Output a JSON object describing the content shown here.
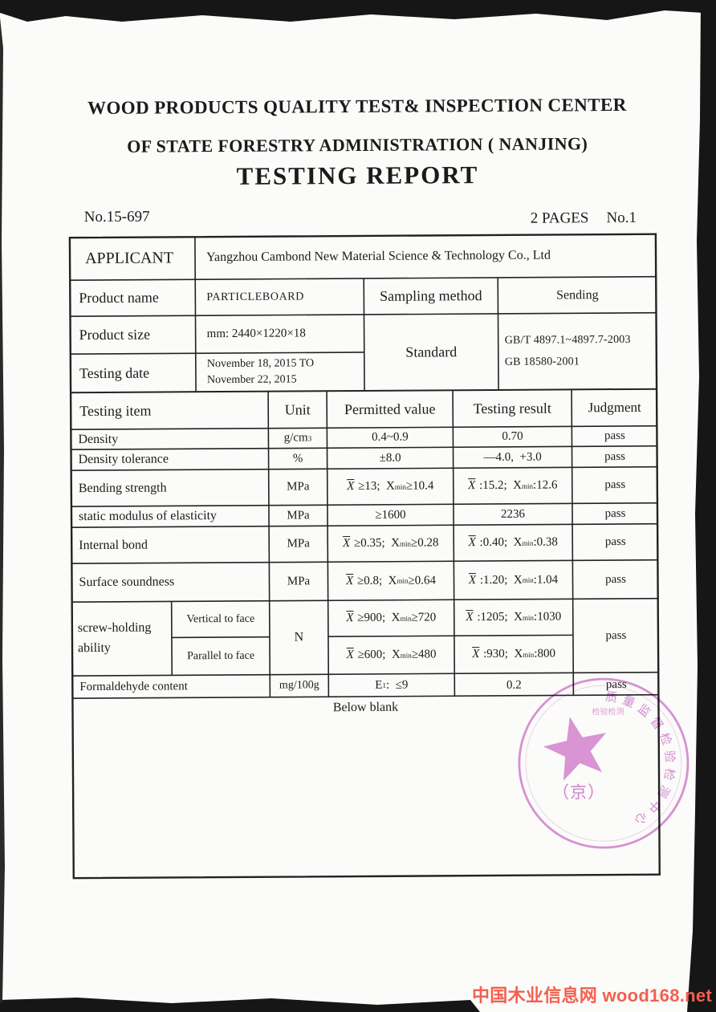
{
  "page": {
    "title1": "WOOD PRODUCTS QUALITY TEST& INSPECTION CENTER",
    "title2": "OF STATE FORESTRY ADMINISTRATION ( NANJING)",
    "title3": "TESTING REPORT",
    "report_no": "No.15-697",
    "pages_label": "2 PAGES",
    "page_no": "No.1"
  },
  "info": {
    "applicant_label": "APPLICANT",
    "applicant_value": "Yangzhou Cambond New Material Science & Technology Co., Ltd",
    "product_name_label": "Product name",
    "product_name_value": "PARTICLEBOARD",
    "sampling_label": "Sampling method",
    "sampling_value": "Sending",
    "product_size_label": "Product size",
    "product_size_value": "mm: 2440×1220×18",
    "testing_date_label": "Testing date",
    "testing_date_line1": "November 18, 2015 TO",
    "testing_date_line2": "November 22, 2015",
    "standard_label": "Standard",
    "standard_line1": "GB/T 4897.1~4897.7-2003",
    "standard_line2": "GB 18580-2001"
  },
  "results": {
    "headers": {
      "item": "Testing item",
      "unit": "Unit",
      "permitted": "Permitted value",
      "result": "Testing result",
      "judgment": "Judgment"
    },
    "rows": [
      {
        "item": "Density",
        "unit": [
          {
            "t": "g/cm"
          },
          {
            "t": "3",
            "sup": true
          }
        ],
        "permitted": [
          {
            "t": "0.4~0.9"
          }
        ],
        "result": [
          {
            "t": "0.70"
          }
        ],
        "judgment": "pass"
      },
      {
        "item": "Density tolerance",
        "unit": [
          {
            "t": "%"
          }
        ],
        "permitted": [
          {
            "t": "±8.0"
          }
        ],
        "result": [
          {
            "t": "—4.0,  +3.0"
          }
        ],
        "judgment": "pass"
      },
      {
        "item": "Bending strength",
        "unit": [
          {
            "t": "MPa"
          }
        ],
        "permitted": [
          {
            "t": "X",
            "ov": true
          },
          {
            "t": " ≥13;  X"
          },
          {
            "t": "min",
            "sub": true
          },
          {
            "t": "≥10.4"
          }
        ],
        "result": [
          {
            "t": "X",
            "ov": true
          },
          {
            "t": " :15.2;  X"
          },
          {
            "t": "min",
            "sub": true
          },
          {
            "t": ":12.6"
          }
        ],
        "judgment": "pass"
      },
      {
        "item": "static modulus of elasticity",
        "unit": [
          {
            "t": "MPa"
          }
        ],
        "permitted": [
          {
            "t": "≥1600"
          }
        ],
        "result": [
          {
            "t": "2236"
          }
        ],
        "judgment": "pass"
      },
      {
        "item": "Internal bond",
        "unit": [
          {
            "t": "MPa"
          }
        ],
        "permitted": [
          {
            "t": "X",
            "ov": true
          },
          {
            "t": " ≥0.35;  X"
          },
          {
            "t": "min",
            "sub": true
          },
          {
            "t": "≥0.28"
          }
        ],
        "result": [
          {
            "t": "X",
            "ov": true
          },
          {
            "t": " :0.40;  X"
          },
          {
            "t": "min",
            "sub": true
          },
          {
            "t": ":0.38"
          }
        ],
        "judgment": "pass"
      },
      {
        "item": "Surface soundness",
        "unit": [
          {
            "t": "MPa"
          }
        ],
        "permitted": [
          {
            "t": "X",
            "ov": true
          },
          {
            "t": " ≥0.8;  X"
          },
          {
            "t": "min",
            "sub": true
          },
          {
            "t": "≥0.64"
          }
        ],
        "result": [
          {
            "t": "X",
            "ov": true
          },
          {
            "t": " :1.20;  X"
          },
          {
            "t": "min",
            "sub": true
          },
          {
            "t": ":1.04"
          }
        ],
        "judgment": "pass"
      }
    ],
    "screw_group": {
      "label_line1": "screw-holding",
      "label_line2": "ability",
      "unit": "N",
      "judgment": "pass",
      "rows": [
        {
          "label": "Vertical to face",
          "permitted": [
            {
              "t": "X",
              "ov": true
            },
            {
              "t": " ≥900;  X"
            },
            {
              "t": "min",
              "sub": true
            },
            {
              "t": "≥720"
            }
          ],
          "result": [
            {
              "t": "X",
              "ov": true
            },
            {
              "t": " :1205;  X"
            },
            {
              "t": "min",
              "sub": true
            },
            {
              "t": ":1030"
            }
          ]
        },
        {
          "label": "Parallel to face",
          "permitted": [
            {
              "t": "X",
              "ov": true
            },
            {
              "t": " ≥600;  X"
            },
            {
              "t": "min",
              "sub": true
            },
            {
              "t": "≥480"
            }
          ],
          "result": [
            {
              "t": "X",
              "ov": true
            },
            {
              "t": " :930;  X"
            },
            {
              "t": "min",
              "sub": true
            },
            {
              "t": ":800"
            }
          ]
        }
      ]
    },
    "formaldehyde": {
      "item": "Formaldehyde content",
      "unit": [
        {
          "t": "mg/100g"
        }
      ],
      "permitted": [
        {
          "t": "E"
        },
        {
          "t": "1",
          "sub": true
        },
        {
          "t": ":  ≤9"
        }
      ],
      "result": [
        {
          "t": "0.2"
        }
      ],
      "judgment": "pass"
    },
    "below_blank": "Below blank"
  },
  "stamp": {
    "arc_text": "质量监督检验检测中心",
    "top_text": "检验检测",
    "center_text": "（京）",
    "color": "#c35fbe"
  },
  "watermark": {
    "text": "中国木业信息网 wood168.net",
    "color": "#f2604f"
  }
}
